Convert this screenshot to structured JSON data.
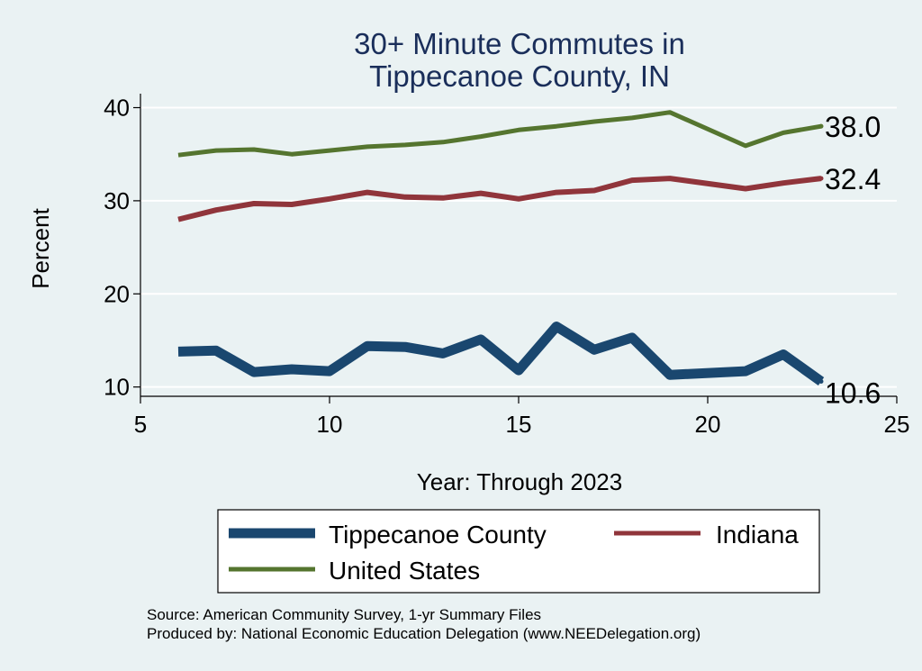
{
  "chart_data": {
    "type": "line",
    "title": [
      "30+ Minute Commutes in",
      "Tippecanoe County, IN"
    ],
    "xlabel": "Year: Through 2023",
    "ylabel": "Percent",
    "xlim": [
      5,
      25
    ],
    "ylim": [
      9,
      41.5
    ],
    "xticks": [
      5,
      10,
      15,
      20,
      25
    ],
    "yticks": [
      10,
      20,
      30,
      40
    ],
    "grid": true,
    "series": [
      {
        "name": "Tippecanoe County",
        "color": "#1a476f",
        "x": [
          6,
          7,
          8,
          9,
          10,
          11,
          12,
          13,
          14,
          15,
          16,
          17,
          18,
          19,
          21,
          22,
          23
        ],
        "values": [
          13.8,
          13.9,
          11.6,
          11.9,
          11.7,
          14.4,
          14.3,
          13.6,
          15.1,
          11.8,
          16.5,
          14.0,
          15.3,
          11.3,
          11.7,
          13.5,
          10.6
        ],
        "end_label": "10.6"
      },
      {
        "name": "Indiana",
        "color": "#90353b",
        "x": [
          6,
          7,
          8,
          9,
          10,
          11,
          12,
          13,
          14,
          15,
          16,
          17,
          18,
          19,
          21,
          22,
          23
        ],
        "values": [
          28.0,
          29.0,
          29.7,
          29.6,
          30.2,
          30.9,
          30.4,
          30.3,
          30.8,
          30.2,
          30.9,
          31.1,
          32.2,
          32.4,
          31.3,
          31.9,
          32.4
        ],
        "end_label": "32.4"
      },
      {
        "name": "United States",
        "color": "#55752f",
        "x": [
          6,
          7,
          8,
          9,
          10,
          11,
          12,
          13,
          14,
          15,
          16,
          17,
          18,
          19,
          21,
          22,
          23
        ],
        "values": [
          34.9,
          35.4,
          35.5,
          35.0,
          35.4,
          35.8,
          36.0,
          36.3,
          36.9,
          37.6,
          38.0,
          38.5,
          38.9,
          39.5,
          35.9,
          37.3,
          38.0
        ],
        "end_label": "38.0"
      }
    ],
    "legend": {
      "position": "bottom",
      "items": [
        "Tippecanoe County",
        "Indiana",
        "United States"
      ]
    },
    "source_lines": [
      "Source: American Community Survey, 1-yr Summary Files",
      "Produced by: National Economic Education Delegation (www.NEEDelegation.org)"
    ]
  }
}
